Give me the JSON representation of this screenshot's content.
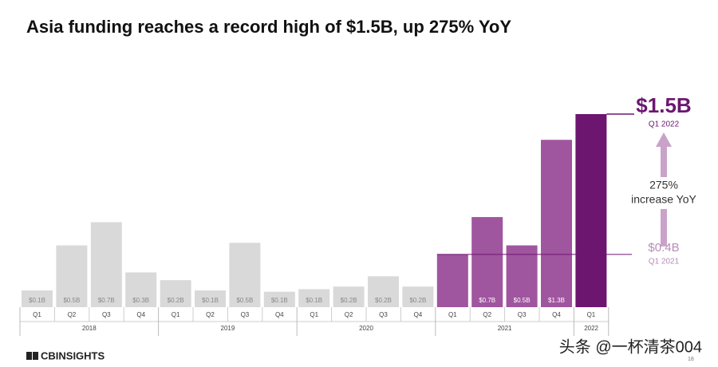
{
  "chart_data": {
    "type": "bar",
    "title": "Asia funding reaches a record high of $1.5B, up 275% YoY",
    "groups": [
      {
        "name": "2018",
        "color": "#d9d9d9",
        "categories": [
          "Q1",
          "Q2",
          "Q3",
          "Q4"
        ]
      },
      {
        "name": "2019",
        "color": "#d9d9d9",
        "categories": [
          "Q1",
          "Q2",
          "Q3",
          "Q4"
        ]
      },
      {
        "name": "2020",
        "color": "#d9d9d9",
        "categories": [
          "Q1",
          "Q2",
          "Q3",
          "Q4"
        ]
      },
      {
        "name": "2021",
        "color": "#a0559f",
        "categories": [
          "Q1",
          "Q2",
          "Q3",
          "Q4"
        ]
      },
      {
        "name": "2022",
        "color": "#6c1670",
        "categories": [
          "Q1"
        ]
      }
    ],
    "values": [
      0.13,
      0.48,
      0.66,
      0.27,
      0.21,
      0.13,
      0.5,
      0.12,
      0.14,
      0.16,
      0.24,
      0.16,
      0.41,
      0.7,
      0.48,
      1.3,
      1.5
    ],
    "value_labels": [
      "$0.1B",
      "$0.5B",
      "$0.7B",
      "$0.3B",
      "$0.2B",
      "$0.1B",
      "$0.5B",
      "$0.1B",
      "$0.1B",
      "$0.2B",
      "$0.2B",
      "$0.2B",
      null,
      "$0.7B",
      "$0.5B",
      "$1.3B",
      null
    ],
    "annotations": {
      "peak_value": "$1.5B",
      "peak_label": "Q1 2022",
      "increase": [
        "275%",
        "increase YoY"
      ],
      "base_value": "$0.4B",
      "base_label": "Q1 2021"
    }
  },
  "footer": {
    "logo": "CBINSIGHTS",
    "page": "18",
    "watermark": "头条 @一杯清茶004"
  }
}
